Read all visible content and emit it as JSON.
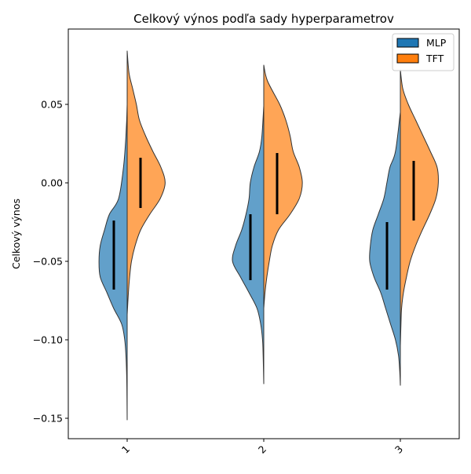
{
  "chart_data": {
    "type": "violin",
    "title": "Celkový výnos podľa sady hyperparametrov",
    "xlabel": "",
    "ylabel": "Celkový výnos",
    "ylim": [
      -0.163,
      0.098
    ],
    "yticks": [
      {
        "value": 0.05,
        "label": "0.05"
      },
      {
        "value": 0.0,
        "label": "0.00"
      },
      {
        "value": -0.05,
        "label": "−0.05"
      },
      {
        "value": -0.1,
        "label": "−0.10"
      },
      {
        "value": -0.15,
        "label": "−0.15"
      }
    ],
    "categories": [
      "1",
      "2",
      "3"
    ],
    "legend": {
      "placement": "top-right"
    },
    "series": [
      {
        "name": "MLP",
        "color": "#1f77b4",
        "side": "left",
        "violins": [
          {
            "min": -0.151,
            "max": 0.071,
            "q1": -0.068,
            "q3": -0.024,
            "profile": [
              [
                0.071,
                0
              ],
              [
                0.05,
                0.0
              ],
              [
                0.03,
                0.02
              ],
              [
                0.01,
                0.06
              ],
              [
                -0.01,
                0.14
              ],
              [
                -0.02,
                0.29
              ],
              [
                -0.03,
                0.37
              ],
              [
                -0.04,
                0.44
              ],
              [
                -0.05,
                0.46
              ],
              [
                -0.06,
                0.44
              ],
              [
                -0.07,
                0.33
              ],
              [
                -0.08,
                0.22
              ],
              [
                -0.09,
                0.09
              ],
              [
                -0.1,
                0.04
              ],
              [
                -0.11,
                0.02
              ],
              [
                -0.12,
                0.01
              ],
              [
                -0.13,
                0.005
              ],
              [
                -0.151,
                0
              ]
            ]
          },
          {
            "min": -0.128,
            "max": 0.049,
            "q1": -0.062,
            "q3": -0.02,
            "profile": [
              [
                0.049,
                0
              ],
              [
                0.03,
                0.03
              ],
              [
                0.02,
                0.07
              ],
              [
                0.01,
                0.16
              ],
              [
                0.0,
                0.22
              ],
              [
                -0.01,
                0.24
              ],
              [
                -0.02,
                0.29
              ],
              [
                -0.03,
                0.36
              ],
              [
                -0.04,
                0.46
              ],
              [
                -0.05,
                0.51
              ],
              [
                -0.06,
                0.38
              ],
              [
                -0.07,
                0.24
              ],
              [
                -0.08,
                0.11
              ],
              [
                -0.09,
                0.05
              ],
              [
                -0.1,
                0.02
              ],
              [
                -0.11,
                0.01
              ],
              [
                -0.128,
                0
              ]
            ]
          },
          {
            "min": -0.129,
            "max": 0.045,
            "q1": -0.068,
            "q3": -0.025,
            "profile": [
              [
                0.045,
                0
              ],
              [
                0.02,
                0.08
              ],
              [
                0.01,
                0.17
              ],
              [
                0.0,
                0.22
              ],
              [
                -0.01,
                0.27
              ],
              [
                -0.02,
                0.36
              ],
              [
                -0.03,
                0.45
              ],
              [
                -0.04,
                0.49
              ],
              [
                -0.05,
                0.5
              ],
              [
                -0.06,
                0.43
              ],
              [
                -0.07,
                0.32
              ],
              [
                -0.08,
                0.24
              ],
              [
                -0.09,
                0.16
              ],
              [
                -0.1,
                0.08
              ],
              [
                -0.11,
                0.03
              ],
              [
                -0.12,
                0.01
              ],
              [
                -0.129,
                0
              ]
            ]
          }
        ]
      },
      {
        "name": "TFT",
        "color": "#ff7f0e",
        "side": "right",
        "violins": [
          {
            "min": -0.084,
            "max": 0.084,
            "q1": -0.016,
            "q3": 0.016,
            "profile": [
              [
                0.084,
                0
              ],
              [
                0.07,
                0.03
              ],
              [
                0.06,
                0.09
              ],
              [
                0.05,
                0.15
              ],
              [
                0.04,
                0.2
              ],
              [
                0.03,
                0.3
              ],
              [
                0.02,
                0.42
              ],
              [
                0.01,
                0.55
              ],
              [
                0.0,
                0.62
              ],
              [
                -0.01,
                0.54
              ],
              [
                -0.02,
                0.37
              ],
              [
                -0.03,
                0.22
              ],
              [
                -0.04,
                0.13
              ],
              [
                -0.05,
                0.07
              ],
              [
                -0.06,
                0.04
              ],
              [
                -0.07,
                0.02
              ],
              [
                -0.084,
                0
              ]
            ]
          },
          {
            "min": -0.08,
            "max": 0.075,
            "q1": -0.02,
            "q3": 0.019,
            "profile": [
              [
                0.075,
                0
              ],
              [
                0.065,
                0.06
              ],
              [
                0.05,
                0.26
              ],
              [
                0.04,
                0.36
              ],
              [
                0.03,
                0.43
              ],
              [
                0.02,
                0.48
              ],
              [
                0.01,
                0.58
              ],
              [
                0.0,
                0.63
              ],
              [
                -0.01,
                0.58
              ],
              [
                -0.02,
                0.43
              ],
              [
                -0.03,
                0.24
              ],
              [
                -0.04,
                0.14
              ],
              [
                -0.05,
                0.09
              ],
              [
                -0.06,
                0.05
              ],
              [
                -0.07,
                0.02
              ],
              [
                -0.08,
                0
              ]
            ]
          },
          {
            "min": -0.104,
            "max": 0.072,
            "q1": -0.024,
            "q3": 0.014,
            "profile": [
              [
                0.072,
                0
              ],
              [
                0.06,
                0.04
              ],
              [
                0.05,
                0.13
              ],
              [
                0.04,
                0.25
              ],
              [
                0.03,
                0.37
              ],
              [
                0.02,
                0.49
              ],
              [
                0.01,
                0.6
              ],
              [
                0.0,
                0.62
              ],
              [
                -0.01,
                0.58
              ],
              [
                -0.02,
                0.48
              ],
              [
                -0.03,
                0.36
              ],
              [
                -0.04,
                0.25
              ],
              [
                -0.05,
                0.16
              ],
              [
                -0.06,
                0.1
              ],
              [
                -0.07,
                0.05
              ],
              [
                -0.08,
                0.02
              ],
              [
                -0.09,
                0.01
              ],
              [
                -0.104,
                0
              ]
            ]
          }
        ]
      }
    ]
  }
}
